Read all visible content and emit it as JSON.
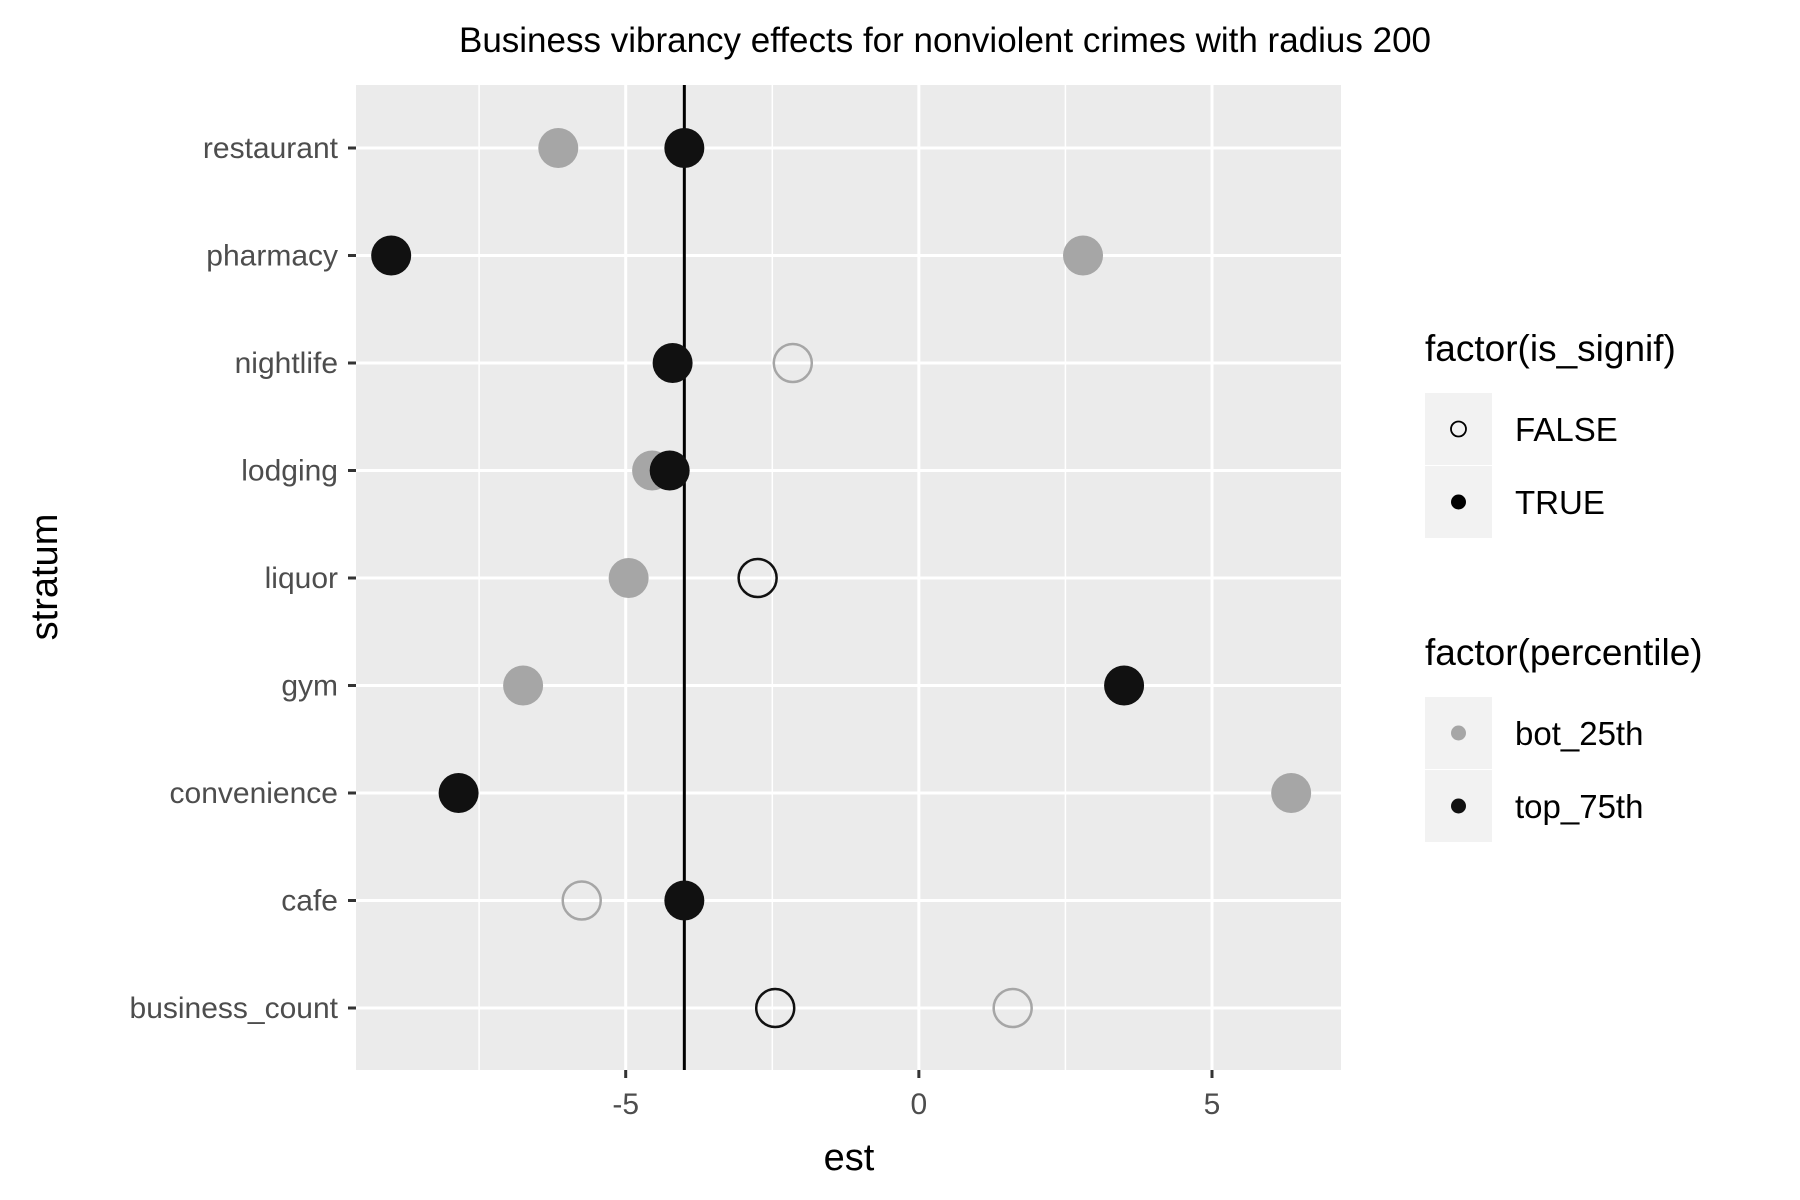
{
  "chart_data": {
    "type": "scatter",
    "title": "Business vibrancy effects for nonviolent crimes with radius 200",
    "xlabel": "est",
    "ylabel": "stratum",
    "xlim": [
      -9.6,
      7.2
    ],
    "x_ticks": [
      -5,
      0,
      5
    ],
    "x_tick_labels": [
      "-5",
      "0",
      "5"
    ],
    "categories": [
      "restaurant",
      "pharmacy",
      "nightlife",
      "lodging",
      "liquor",
      "gym",
      "convenience",
      "cafe",
      "business_count"
    ],
    "reference_line_x": -4.0,
    "grid": true,
    "series": [
      {
        "name": "bot_25th",
        "color": "#a6a6a6",
        "points": [
          {
            "stratum": "restaurant",
            "est": -6.15,
            "is_signif": true
          },
          {
            "stratum": "pharmacy",
            "est": 2.8,
            "is_signif": true
          },
          {
            "stratum": "nightlife",
            "est": -2.15,
            "is_signif": false
          },
          {
            "stratum": "lodging",
            "est": -4.55,
            "is_signif": true
          },
          {
            "stratum": "liquor",
            "est": -4.95,
            "is_signif": true
          },
          {
            "stratum": "gym",
            "est": -6.75,
            "is_signif": true
          },
          {
            "stratum": "convenience",
            "est": 6.35,
            "is_signif": true
          },
          {
            "stratum": "cafe",
            "est": -5.75,
            "is_signif": false
          },
          {
            "stratum": "business_count",
            "est": 1.6,
            "is_signif": false
          }
        ]
      },
      {
        "name": "top_75th",
        "color": "#111111",
        "points": [
          {
            "stratum": "restaurant",
            "est": -4.0,
            "is_signif": true
          },
          {
            "stratum": "pharmacy",
            "est": -9.0,
            "is_signif": true
          },
          {
            "stratum": "nightlife",
            "est": -4.2,
            "is_signif": true
          },
          {
            "stratum": "lodging",
            "est": -4.25,
            "is_signif": true
          },
          {
            "stratum": "liquor",
            "est": -2.75,
            "is_signif": false
          },
          {
            "stratum": "gym",
            "est": 3.5,
            "is_signif": true
          },
          {
            "stratum": "convenience",
            "est": -7.85,
            "is_signif": true
          },
          {
            "stratum": "cafe",
            "est": -4.0,
            "is_signif": true
          },
          {
            "stratum": "business_count",
            "est": -2.45,
            "is_signif": false
          }
        ]
      }
    ],
    "legends": [
      {
        "title": "factor(is_signif)",
        "entries": [
          {
            "label": "FALSE",
            "shape": "open-circle"
          },
          {
            "label": "TRUE",
            "shape": "filled-circle"
          }
        ]
      },
      {
        "title": "factor(percentile)",
        "entries": [
          {
            "label": "bot_25th",
            "color": "#a6a6a6"
          },
          {
            "label": "top_75th",
            "color": "#111111"
          }
        ]
      }
    ],
    "legend_position": "right"
  }
}
